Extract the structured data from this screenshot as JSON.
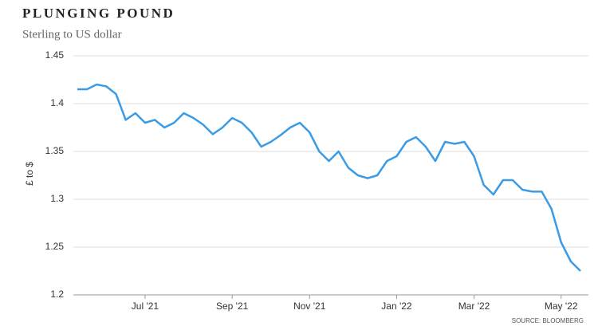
{
  "chart_data": {
    "type": "line",
    "title": "PLUNGING POUND",
    "subtitle": "Sterling to US dollar",
    "y_label": "£ to $",
    "source": "SOURCE: BLOOMBERG",
    "categories": [
      null,
      null,
      null,
      null,
      null,
      null,
      null,
      "Jul '21",
      null,
      null,
      null,
      null,
      null,
      null,
      null,
      null,
      "Sep '21",
      null,
      null,
      null,
      null,
      null,
      null,
      null,
      "Nov '21",
      null,
      null,
      null,
      null,
      null,
      null,
      null,
      null,
      "Jan '22",
      null,
      null,
      null,
      null,
      null,
      null,
      null,
      "Mar '22",
      null,
      null,
      null,
      null,
      null,
      null,
      null,
      null,
      "May '22",
      null,
      null
    ],
    "series": [
      {
        "name": "GBP/USD",
        "color": "#3a9be6",
        "values": [
          1.415,
          1.415,
          1.42,
          1.418,
          1.41,
          1.383,
          1.39,
          1.38,
          1.383,
          1.375,
          1.38,
          1.39,
          1.385,
          1.378,
          1.368,
          1.375,
          1.385,
          1.38,
          1.37,
          1.355,
          1.36,
          1.367,
          1.375,
          1.38,
          1.37,
          1.35,
          1.34,
          1.35,
          1.333,
          1.325,
          1.322,
          1.325,
          1.34,
          1.345,
          1.36,
          1.365,
          1.355,
          1.34,
          1.36,
          1.358,
          1.36,
          1.345,
          1.315,
          1.305,
          1.32,
          1.32,
          1.31,
          1.308,
          1.308,
          1.29,
          1.255,
          1.235,
          1.225
        ]
      }
    ],
    "ylim": [
      1.2,
      1.45
    ],
    "yticks": [
      1.2,
      1.25,
      1.3,
      1.35,
      1.4,
      1.45
    ],
    "grid": true
  }
}
